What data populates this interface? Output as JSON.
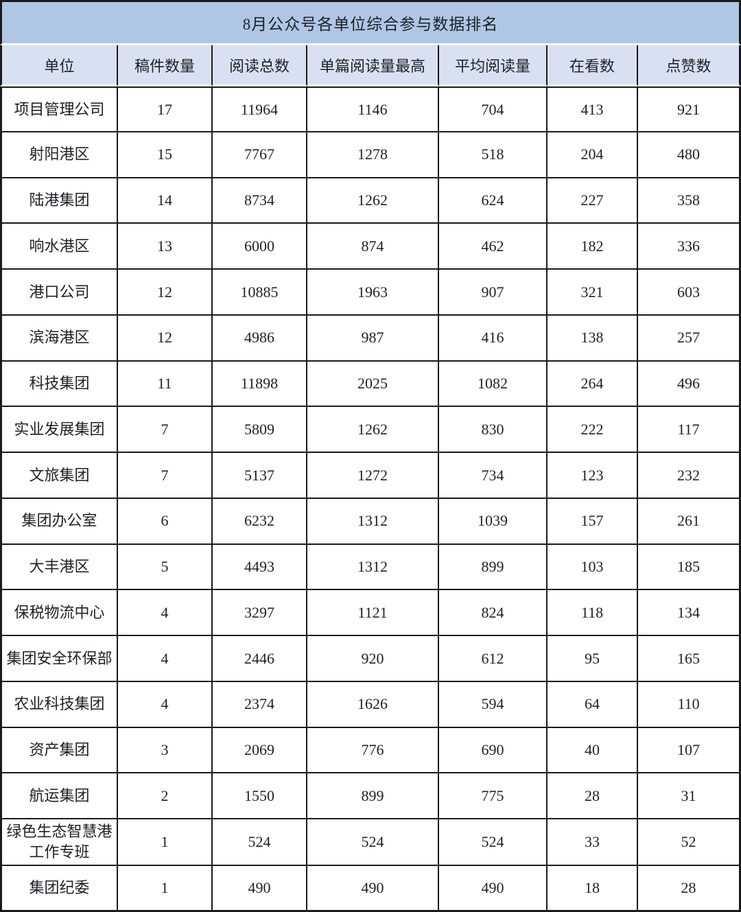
{
  "chart_data": {
    "type": "table",
    "title": "8月公众号各单位综合参与数据排名",
    "columns": [
      "单位",
      "稿件数量",
      "阅读总数",
      "单篇阅读量最高",
      "平均阅读量",
      "在看数",
      "点赞数"
    ],
    "rows": [
      [
        "项目管理公司",
        17,
        11964,
        1146,
        704,
        413,
        921
      ],
      [
        "射阳港区",
        15,
        7767,
        1278,
        518,
        204,
        480
      ],
      [
        "陆港集团",
        14,
        8734,
        1262,
        624,
        227,
        358
      ],
      [
        "响水港区",
        13,
        6000,
        874,
        462,
        182,
        336
      ],
      [
        "港口公司",
        12,
        10885,
        1963,
        907,
        321,
        603
      ],
      [
        "滨海港区",
        12,
        4986,
        987,
        416,
        138,
        257
      ],
      [
        "科技集团",
        11,
        11898,
        2025,
        1082,
        264,
        496
      ],
      [
        "实业发展集团",
        7,
        5809,
        1262,
        830,
        222,
        117
      ],
      [
        "文旅集团",
        7,
        5137,
        1272,
        734,
        123,
        232
      ],
      [
        "集团办公室",
        6,
        6232,
        1312,
        1039,
        157,
        261
      ],
      [
        "大丰港区",
        5,
        4493,
        1312,
        899,
        103,
        185
      ],
      [
        "保税物流中心",
        4,
        3297,
        1121,
        824,
        118,
        134
      ],
      [
        "集团安全环保部",
        4,
        2446,
        920,
        612,
        95,
        165
      ],
      [
        "农业科技集团",
        4,
        2374,
        1626,
        594,
        64,
        110
      ],
      [
        "资产集团",
        3,
        2069,
        776,
        690,
        40,
        107
      ],
      [
        "航运集团",
        2,
        1550,
        899,
        775,
        28,
        31
      ],
      [
        "绿色生态智慧港工作专班",
        1,
        524,
        524,
        524,
        33,
        52
      ],
      [
        "集团纪委",
        1,
        490,
        490,
        490,
        18,
        28
      ]
    ],
    "layout": {
      "grid": "on",
      "legend": "none"
    }
  },
  "colors": {
    "title_bg": "#afc6e5",
    "header_bg": "#d8e1f2",
    "border": "#1a1a1a",
    "text": "#1c2126"
  }
}
